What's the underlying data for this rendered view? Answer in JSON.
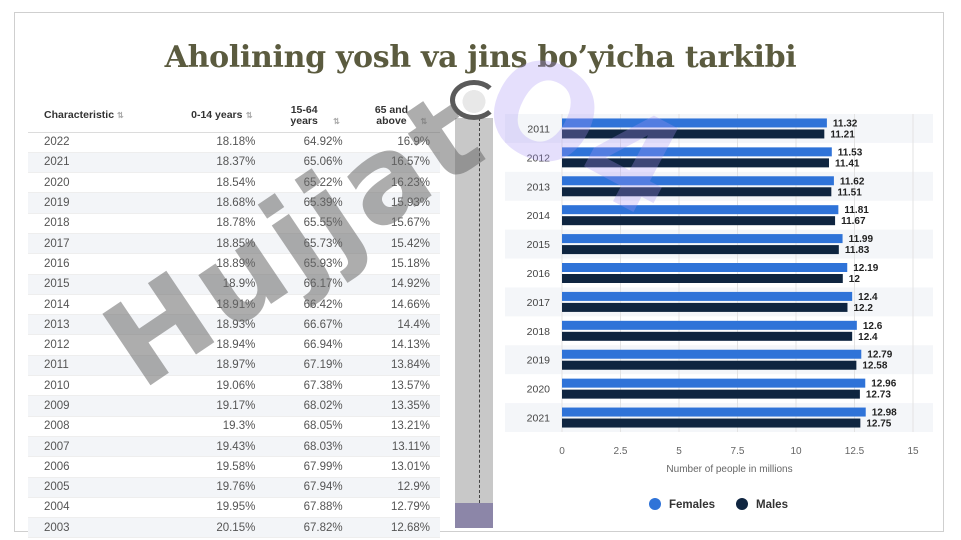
{
  "title": "Aholining yosh va jins bo’yicha tarkibi",
  "table": {
    "headers": [
      "Characteristic",
      "0-14 years",
      "15-64 years",
      "65 and above"
    ],
    "rows": [
      [
        "2022",
        "18.18%",
        "64.92%",
        "16.9%"
      ],
      [
        "2021",
        "18.37%",
        "65.06%",
        "16.57%"
      ],
      [
        "2020",
        "18.54%",
        "65.22%",
        "16.23%"
      ],
      [
        "2019",
        "18.68%",
        "65.39%",
        "15.93%"
      ],
      [
        "2018",
        "18.78%",
        "65.55%",
        "15.67%"
      ],
      [
        "2017",
        "18.85%",
        "65.73%",
        "15.42%"
      ],
      [
        "2016",
        "18.89%",
        "65.93%",
        "15.18%"
      ],
      [
        "2015",
        "18.9%",
        "66.17%",
        "14.92%"
      ],
      [
        "2014",
        "18.91%",
        "66.42%",
        "14.66%"
      ],
      [
        "2013",
        "18.93%",
        "66.67%",
        "14.4%"
      ],
      [
        "2012",
        "18.94%",
        "66.94%",
        "14.13%"
      ],
      [
        "2011",
        "18.97%",
        "67.19%",
        "13.84%"
      ],
      [
        "2010",
        "19.06%",
        "67.38%",
        "13.57%"
      ],
      [
        "2009",
        "19.17%",
        "68.02%",
        "13.35%"
      ],
      [
        "2008",
        "19.3%",
        "68.05%",
        "13.21%"
      ],
      [
        "2007",
        "19.43%",
        "68.03%",
        "13.11%"
      ],
      [
        "2006",
        "19.58%",
        "67.99%",
        "13.01%"
      ],
      [
        "2005",
        "19.76%",
        "67.94%",
        "12.9%"
      ],
      [
        "2004",
        "19.95%",
        "67.88%",
        "12.79%"
      ],
      [
        "2003",
        "20.15%",
        "67.82%",
        "12.68%"
      ]
    ]
  },
  "chart_data": {
    "type": "bar",
    "orientation": "horizontal",
    "categories": [
      "2011",
      "2012",
      "2013",
      "2014",
      "2015",
      "2016",
      "2017",
      "2018",
      "2019",
      "2020",
      "2021"
    ],
    "series": [
      {
        "name": "Females",
        "color": "#2f73d8",
        "values": [
          11.32,
          11.53,
          11.62,
          11.81,
          11.99,
          12.19,
          12.4,
          12.6,
          12.79,
          12.96,
          12.98
        ],
        "labels": [
          "11.32",
          "11.53",
          "11.62",
          "11.81",
          "11.99",
          "12.19",
          "12.4",
          "12.6",
          "12.79",
          "12.96",
          "12.98"
        ]
      },
      {
        "name": "Males",
        "color": "#0f2540",
        "values": [
          11.21,
          11.41,
          11.51,
          11.67,
          11.83,
          12,
          12.2,
          12.4,
          12.58,
          12.73,
          12.75
        ],
        "labels": [
          "11.21",
          "11.41",
          "11.51",
          "11.67",
          "11.83",
          "12",
          "12.2",
          "12.4",
          "12.58",
          "12.73",
          "12.75"
        ]
      }
    ],
    "xlabel": "Number of people in millions",
    "xlim": [
      0,
      15
    ],
    "xticks": [
      "0",
      "2.5",
      "5",
      "7.5",
      "10",
      "12.5",
      "15"
    ],
    "legend_position": "bottom",
    "grid": true
  },
  "watermark": {
    "grey": "Hujjat",
    "purple": "O4"
  }
}
